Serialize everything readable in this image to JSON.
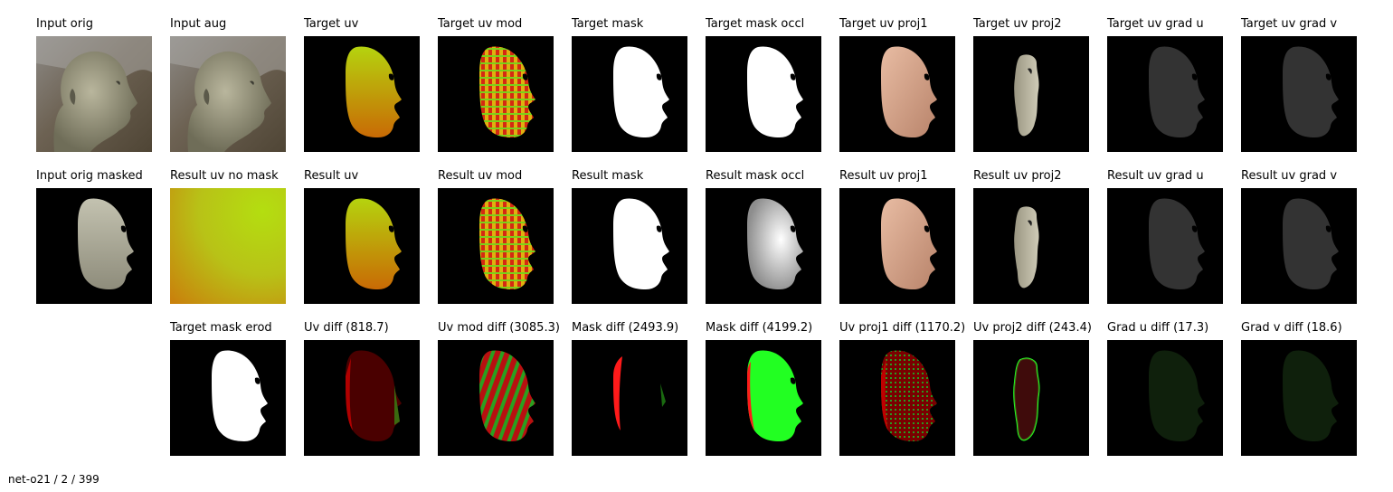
{
  "panels": [
    {
      "title": "Input orig",
      "kind": "photo",
      "row": 0,
      "col": 0
    },
    {
      "title": "Input aug",
      "kind": "photo",
      "row": 0,
      "col": 1
    },
    {
      "title": "Target uv",
      "kind": "uv",
      "row": 0,
      "col": 2
    },
    {
      "title": "Target uv mod",
      "kind": "uvmod",
      "row": 0,
      "col": 3
    },
    {
      "title": "Target mask",
      "kind": "mask",
      "row": 0,
      "col": 4
    },
    {
      "title": "Target mask occl",
      "kind": "mask",
      "row": 0,
      "col": 5
    },
    {
      "title": "Target uv proj1",
      "kind": "skin",
      "row": 0,
      "col": 6
    },
    {
      "title": "Target uv proj2",
      "kind": "strip",
      "row": 0,
      "col": 7
    },
    {
      "title": "Target uv grad u",
      "kind": "grad",
      "row": 0,
      "col": 8
    },
    {
      "title": "Target uv grad v",
      "kind": "grad",
      "row": 0,
      "col": 9
    },
    {
      "title": "Input orig masked",
      "kind": "masked",
      "row": 1,
      "col": 0
    },
    {
      "title": "Result uv no mask",
      "kind": "nomask",
      "row": 1,
      "col": 1
    },
    {
      "title": "Result uv",
      "kind": "uv",
      "row": 1,
      "col": 2
    },
    {
      "title": "Result uv mod",
      "kind": "uvmod",
      "row": 1,
      "col": 3
    },
    {
      "title": "Result mask",
      "kind": "mask",
      "row": 1,
      "col": 4
    },
    {
      "title": "Result mask occl",
      "kind": "maskgray",
      "row": 1,
      "col": 5
    },
    {
      "title": "Result uv proj1",
      "kind": "skin",
      "row": 1,
      "col": 6
    },
    {
      "title": "Result uv proj2",
      "kind": "strip",
      "row": 1,
      "col": 7
    },
    {
      "title": "Result uv grad u",
      "kind": "grad",
      "row": 1,
      "col": 8
    },
    {
      "title": "Result uv grad v",
      "kind": "grad",
      "row": 1,
      "col": 9
    },
    {
      "title": "Target mask erod",
      "kind": "mask",
      "row": 2,
      "col": 1
    },
    {
      "title": "Uv diff (818.7)",
      "kind": "diffred",
      "row": 2,
      "col": 2
    },
    {
      "title": "Uv mod diff (3085.3)",
      "kind": "diffstripe",
      "row": 2,
      "col": 3
    },
    {
      "title": "Mask diff (2493.9)",
      "kind": "diffedge",
      "row": 2,
      "col": 4
    },
    {
      "title": "Mask diff (4199.2)",
      "kind": "diffgreen",
      "row": 2,
      "col": 5
    },
    {
      "title": "Uv proj1 diff (1170.2)",
      "kind": "diffnoise",
      "row": 2,
      "col": 6
    },
    {
      "title": "Uv proj2 diff (243.4)",
      "kind": "diffstrip",
      "row": 2,
      "col": 7
    },
    {
      "title": "Grad u diff (17.3)",
      "kind": "difffaint",
      "row": 2,
      "col": 8
    },
    {
      "title": "Grad v diff (18.6)",
      "kind": "difffaint",
      "row": 2,
      "col": 9
    }
  ],
  "footer": "net-o21 / 2 / 399",
  "colors": {
    "background": "#ffffff",
    "panel_bg": "#000000",
    "uv_top": "#b5d30e",
    "uv_bottom": "#c96a05",
    "skin": "#d9a58a",
    "diff_red": "#ff1a1a",
    "diff_green": "#22ff22"
  }
}
